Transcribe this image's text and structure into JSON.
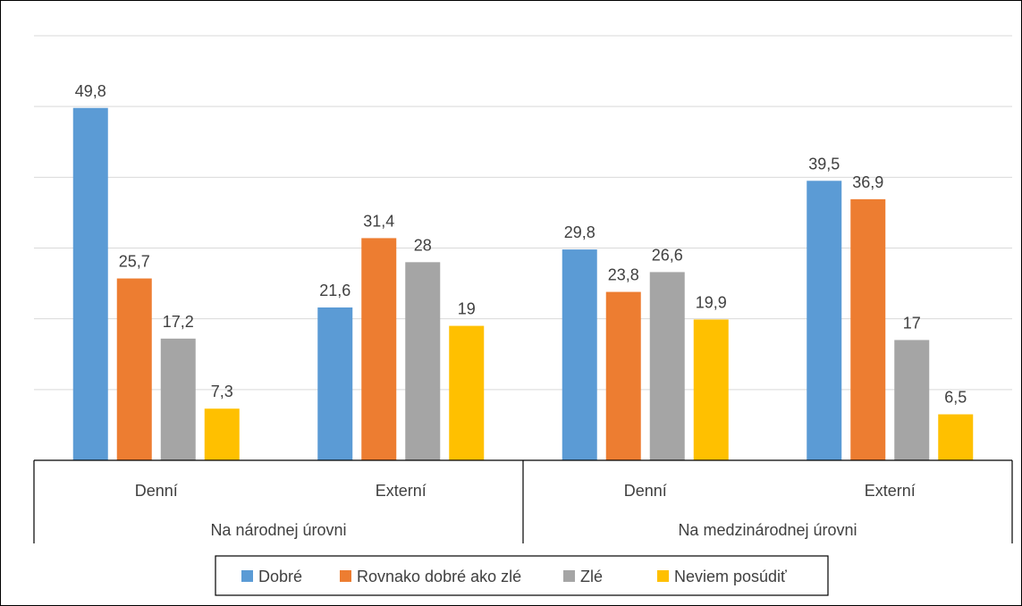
{
  "chart_data": {
    "type": "bar",
    "groups": [
      {
        "label": "Na národnej úrovni",
        "subcategories": [
          {
            "label": "Denní",
            "values": [
              49.8,
              25.7,
              17.2,
              7.3
            ],
            "labels": [
              "49,8",
              "25,7",
              "17,2",
              "7,3"
            ]
          },
          {
            "label": "Externí",
            "values": [
              21.6,
              31.4,
              28,
              19
            ],
            "labels": [
              "21,6",
              "31,4",
              "28",
              "19"
            ]
          }
        ]
      },
      {
        "label": "Na medzinárodnej úrovni",
        "subcategories": [
          {
            "label": "Denní",
            "values": [
              29.8,
              23.8,
              26.6,
              19.9
            ],
            "labels": [
              "29,8",
              "23,8",
              "26,6",
              "19,9"
            ]
          },
          {
            "label": "Externí",
            "values": [
              39.5,
              36.9,
              17,
              6.5
            ],
            "labels": [
              "39,5",
              "36,9",
              "17",
              "6,5"
            ]
          }
        ]
      }
    ],
    "series": [
      {
        "name": "Dobré",
        "color": "#5B9BD5"
      },
      {
        "name": "Rovnako dobré ako zlé",
        "color": "#ED7D31"
      },
      {
        "name": "Zlé",
        "color": "#A5A5A5"
      },
      {
        "name": "Neviem posúdiť",
        "color": "#FFC000"
      }
    ],
    "ylim": [
      0,
      60
    ],
    "grid": true,
    "y_tick_labels": false,
    "legend_position": "bottom",
    "title": "",
    "xlabel": "",
    "ylabel": ""
  }
}
